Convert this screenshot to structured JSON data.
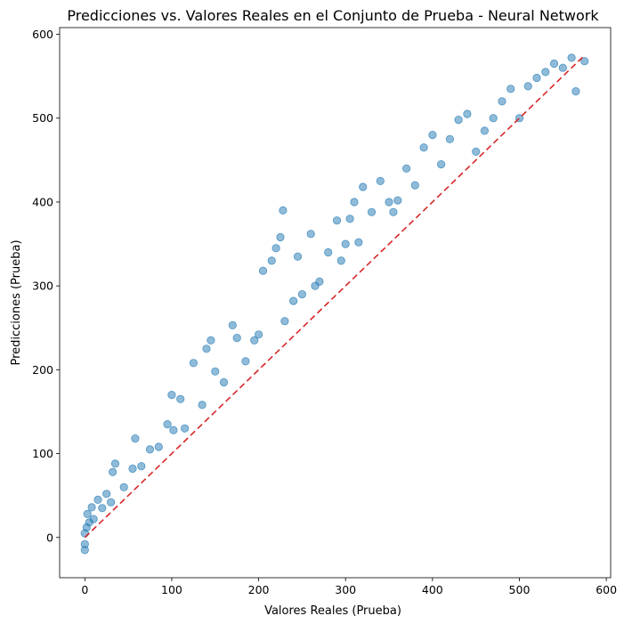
{
  "chart_data": {
    "type": "scatter",
    "title": "Predicciones vs. Valores Reales en el Conjunto de Prueba - Neural Network",
    "xlabel": "Valores Reales (Prueba)",
    "ylabel": "Predicciones (Prueba)",
    "xlim": [
      -29,
      605
    ],
    "ylim": [
      -48,
      608
    ],
    "xticks": [
      0,
      100,
      200,
      300,
      400,
      500,
      600
    ],
    "yticks": [
      0,
      100,
      200,
      300,
      400,
      500,
      600
    ],
    "xtick_labels": [
      "0",
      "100",
      "200",
      "300",
      "400",
      "500",
      "600"
    ],
    "ytick_labels": [
      "0",
      "100",
      "200",
      "300",
      "400",
      "500",
      "600"
    ],
    "grid": false,
    "point_color": "#1f77b4",
    "point_alpha": 0.5,
    "reference_line": {
      "from": [
        0,
        0
      ],
      "to": [
        575,
        575
      ],
      "color": "#d62728",
      "style": "dashed"
    },
    "series": [
      {
        "points": [
          [
            0,
            -15
          ],
          [
            0,
            -8
          ],
          [
            0,
            5
          ],
          [
            2,
            12
          ],
          [
            3,
            28
          ],
          [
            5,
            18
          ],
          [
            8,
            36
          ],
          [
            10,
            22
          ],
          [
            15,
            45
          ],
          [
            20,
            35
          ],
          [
            25,
            52
          ],
          [
            30,
            42
          ],
          [
            32,
            78
          ],
          [
            35,
            88
          ],
          [
            45,
            60
          ],
          [
            55,
            82
          ],
          [
            58,
            118
          ],
          [
            65,
            85
          ],
          [
            75,
            105
          ],
          [
            85,
            108
          ],
          [
            95,
            135
          ],
          [
            100,
            170
          ],
          [
            102,
            128
          ],
          [
            110,
            165
          ],
          [
            115,
            130
          ],
          [
            125,
            208
          ],
          [
            135,
            158
          ],
          [
            140,
            225
          ],
          [
            145,
            235
          ],
          [
            150,
            198
          ],
          [
            160,
            185
          ],
          [
            170,
            253
          ],
          [
            175,
            238
          ],
          [
            185,
            210
          ],
          [
            195,
            235
          ],
          [
            200,
            242
          ],
          [
            205,
            318
          ],
          [
            215,
            330
          ],
          [
            220,
            345
          ],
          [
            225,
            358
          ],
          [
            228,
            390
          ],
          [
            230,
            258
          ],
          [
            240,
            282
          ],
          [
            245,
            335
          ],
          [
            250,
            290
          ],
          [
            260,
            362
          ],
          [
            265,
            300
          ],
          [
            270,
            305
          ],
          [
            280,
            340
          ],
          [
            290,
            378
          ],
          [
            295,
            330
          ],
          [
            300,
            350
          ],
          [
            305,
            380
          ],
          [
            310,
            400
          ],
          [
            315,
            352
          ],
          [
            320,
            418
          ],
          [
            330,
            388
          ],
          [
            340,
            425
          ],
          [
            350,
            400
          ],
          [
            355,
            388
          ],
          [
            360,
            402
          ],
          [
            370,
            440
          ],
          [
            380,
            420
          ],
          [
            390,
            465
          ],
          [
            400,
            480
          ],
          [
            410,
            445
          ],
          [
            420,
            475
          ],
          [
            430,
            498
          ],
          [
            440,
            505
          ],
          [
            450,
            460
          ],
          [
            460,
            485
          ],
          [
            470,
            500
          ],
          [
            480,
            520
          ],
          [
            490,
            535
          ],
          [
            500,
            500
          ],
          [
            510,
            538
          ],
          [
            520,
            548
          ],
          [
            530,
            555
          ],
          [
            540,
            565
          ],
          [
            550,
            560
          ],
          [
            560,
            572
          ],
          [
            565,
            532
          ],
          [
            575,
            568
          ]
        ]
      }
    ]
  }
}
